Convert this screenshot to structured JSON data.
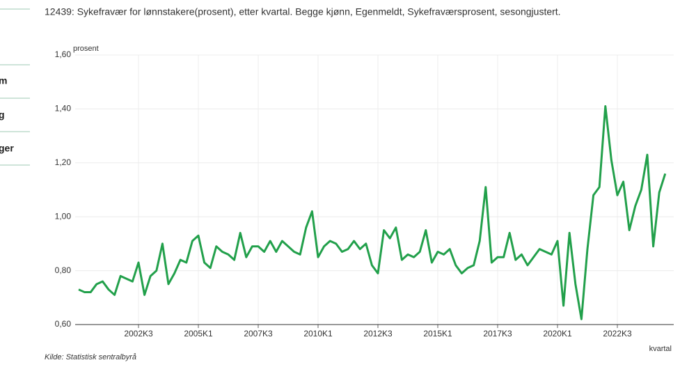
{
  "sidebar": {
    "items": [
      "m",
      "g",
      "ger"
    ]
  },
  "chart_data": {
    "type": "line",
    "title": "12439: Sykefravær for lønnstakere(prosent), etter kvartal. Begge kjønn, Egenmeldt, Sykefraværsprosent, sesongjustert.",
    "y_axis_label": "prosent",
    "x_axis_label": "kvartal",
    "source": "Kilde:  Statistisk sentralbyrå",
    "categories": [
      null,
      null,
      null,
      null,
      null,
      null,
      null,
      null,
      null,
      null,
      "2002K3",
      null,
      null,
      null,
      null,
      null,
      null,
      null,
      null,
      null,
      "2005K1",
      null,
      null,
      null,
      null,
      null,
      null,
      null,
      null,
      null,
      "2007K3",
      null,
      null,
      null,
      null,
      null,
      null,
      null,
      null,
      null,
      "2010K1",
      null,
      null,
      null,
      null,
      null,
      null,
      null,
      null,
      null,
      "2012K3",
      null,
      null,
      null,
      null,
      null,
      null,
      null,
      null,
      null,
      "2015K1",
      null,
      null,
      null,
      null,
      null,
      null,
      null,
      null,
      null,
      "2017K3",
      null,
      null,
      null,
      null,
      null,
      null,
      null,
      null,
      null,
      "2020K1",
      null,
      null,
      null,
      null,
      null,
      null,
      null,
      null,
      null,
      "2022K3",
      null,
      null,
      null,
      null,
      null,
      null,
      null,
      null
    ],
    "series": [
      {
        "name": "Sykefraværsprosent",
        "color": "#22a04b",
        "values": [
          0.73,
          0.72,
          0.72,
          0.75,
          0.76,
          0.73,
          0.71,
          0.78,
          0.77,
          0.76,
          0.83,
          0.71,
          0.78,
          0.8,
          0.9,
          0.75,
          0.79,
          0.84,
          0.83,
          0.91,
          0.93,
          0.83,
          0.81,
          0.89,
          0.87,
          0.86,
          0.84,
          0.94,
          0.85,
          0.89,
          0.89,
          0.87,
          0.91,
          0.87,
          0.91,
          0.89,
          0.87,
          0.86,
          0.96,
          1.02,
          0.85,
          0.89,
          0.91,
          0.9,
          0.87,
          0.88,
          0.91,
          0.88,
          0.9,
          0.82,
          0.79,
          0.95,
          0.92,
          0.96,
          0.84,
          0.86,
          0.85,
          0.87,
          0.95,
          0.83,
          0.87,
          0.86,
          0.88,
          0.82,
          0.79,
          0.81,
          0.82,
          0.91,
          1.11,
          0.83,
          0.85,
          0.85,
          0.94,
          0.84,
          0.86,
          0.82,
          0.85,
          0.88,
          0.87,
          0.86,
          0.91,
          0.67,
          0.94,
          0.75,
          0.62,
          0.88,
          1.08,
          1.11,
          1.41,
          1.21,
          1.08,
          1.13,
          0.95,
          1.04,
          1.1,
          1.23,
          0.89,
          1.09,
          1.16
        ]
      }
    ],
    "ylim": [
      0.6,
      1.6
    ],
    "yticks": [
      {
        "value": 0.6,
        "label": "0,60"
      },
      {
        "value": 0.8,
        "label": "0,80"
      },
      {
        "value": 1.0,
        "label": "1,00"
      },
      {
        "value": 1.2,
        "label": "1,20"
      },
      {
        "value": 1.4,
        "label": "1,40"
      },
      {
        "value": 1.6,
        "label": "1,60"
      }
    ],
    "grid": true
  }
}
